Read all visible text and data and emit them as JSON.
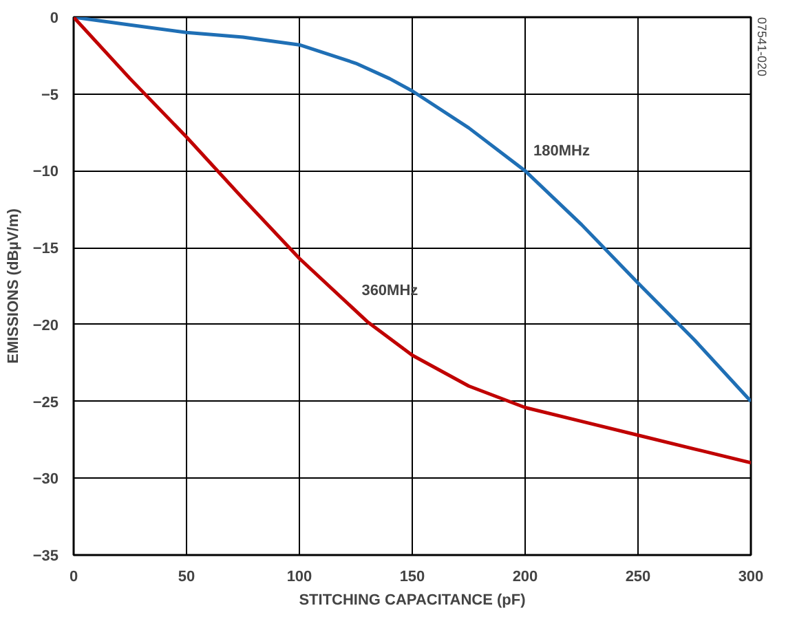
{
  "chart_data": {
    "type": "line",
    "xlabel": "STITCHING CAPACITANCE (pF)",
    "ylabel": "EMISSIONS (dBµV/m)",
    "xlim": [
      0,
      300
    ],
    "ylim": [
      -35,
      0
    ],
    "xticks": [
      0,
      50,
      100,
      150,
      200,
      250,
      300
    ],
    "yticks": [
      -35,
      -30,
      -25,
      -20,
      -15,
      -10,
      -5,
      0
    ],
    "grid": true,
    "x": [
      0,
      25,
      50,
      75,
      100,
      125,
      140,
      150,
      175,
      200,
      225,
      250,
      275,
      300
    ],
    "series": [
      {
        "name": "180MHz",
        "color": "#1f6fb5",
        "values": [
          0,
          -0.5,
          -1,
          -1.3,
          -1.8,
          -3,
          -4,
          -4.8,
          -7.2,
          -10,
          -13.5,
          -17.3,
          -21,
          -25
        ]
      },
      {
        "name": "360MHz",
        "color": "#c00000",
        "x": [
          0,
          25,
          50,
          75,
          100,
          130,
          150,
          175,
          200,
          225,
          250,
          275,
          300
        ],
        "values": [
          0,
          -4,
          -7.8,
          -11.8,
          -15.7,
          -19.8,
          -22,
          -24,
          -25.4,
          -26.3,
          -27.2,
          -28.1,
          -29
        ]
      }
    ],
    "annotations": [
      "07541-020"
    ]
  }
}
